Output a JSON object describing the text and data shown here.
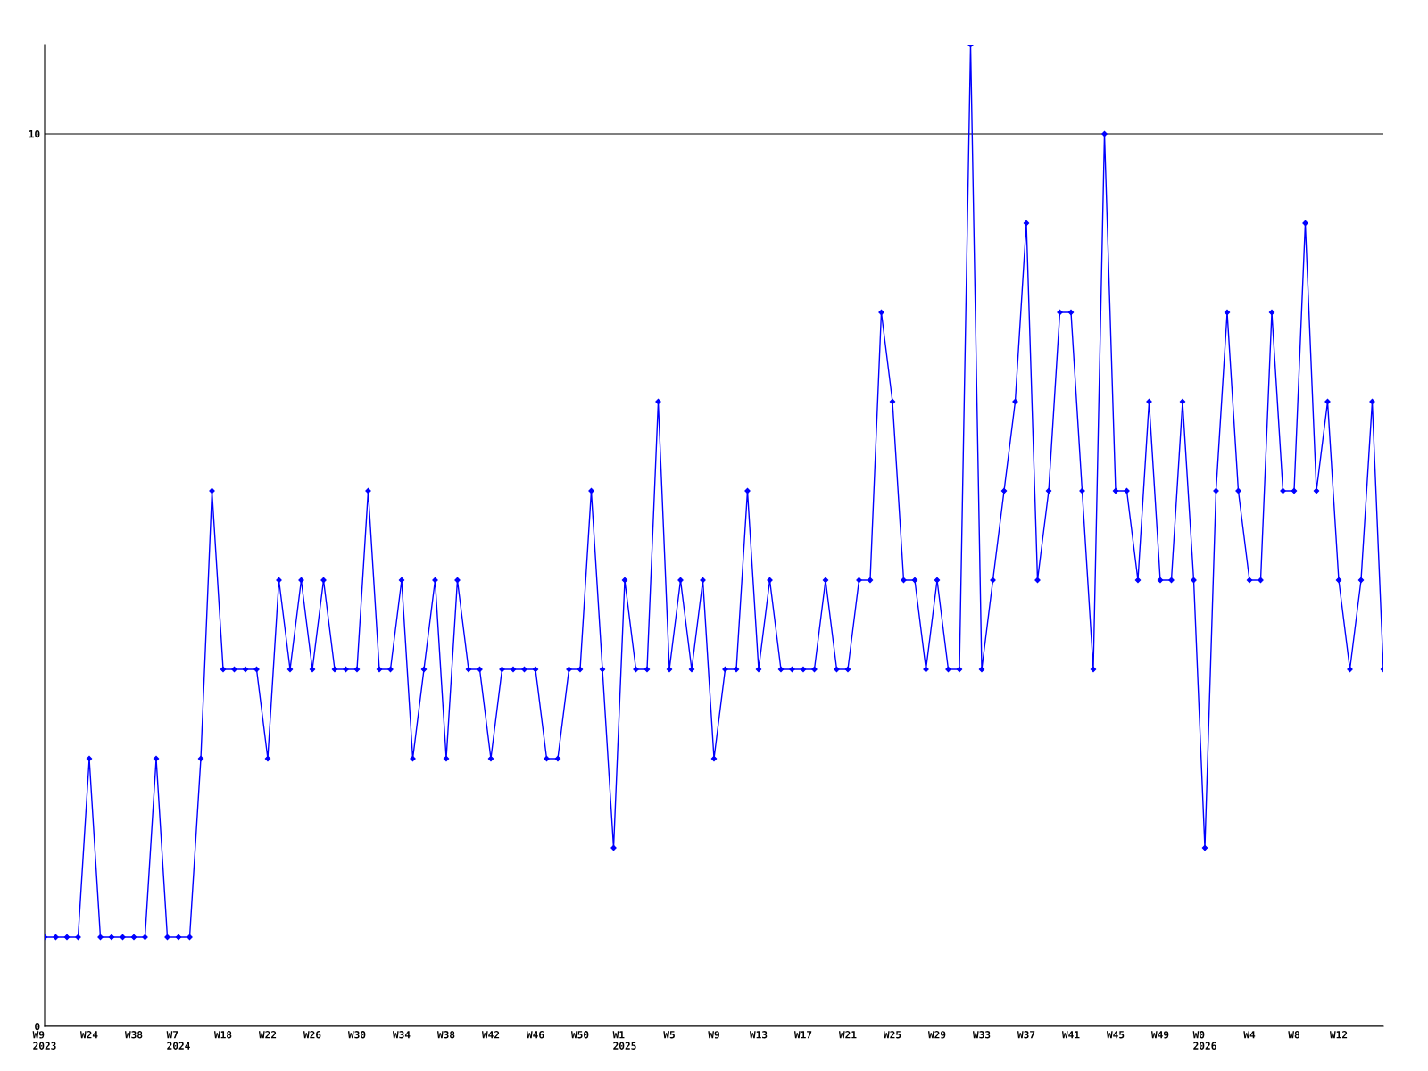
{
  "chart_data": {
    "type": "line",
    "categories": [
      "W9\n2023",
      null,
      null,
      null,
      "W24",
      null,
      null,
      null,
      "W38",
      null,
      null,
      null,
      "W7\n2024",
      null,
      null,
      null,
      "W18",
      null,
      null,
      null,
      "W22",
      null,
      null,
      null,
      "W26",
      null,
      null,
      null,
      "W30",
      null,
      null,
      null,
      "W34",
      null,
      null,
      null,
      "W38",
      null,
      null,
      null,
      "W42",
      null,
      null,
      null,
      "W46",
      null,
      null,
      null,
      "W50",
      null,
      null,
      null,
      "W1\n2025",
      null,
      null,
      null,
      "W5",
      null,
      null,
      null,
      "W9",
      null,
      null,
      null,
      "W13",
      null,
      null,
      null,
      "W17",
      null,
      null,
      null,
      "W21",
      null,
      null,
      null,
      "W25",
      null,
      null,
      null,
      "W29",
      null,
      null,
      null,
      "W33",
      null,
      null,
      null,
      "W37",
      null,
      null,
      null,
      "W41",
      null,
      null,
      null,
      "W45",
      null,
      null,
      null,
      "W49",
      null,
      null,
      null,
      "W0\n2026",
      null,
      null,
      null,
      "W4",
      null,
      null,
      null,
      "W8",
      null,
      null,
      null,
      "W12",
      null,
      null,
      null,
      null
    ],
    "series": [
      {
        "color": "#0000ff",
        "values": [
          1,
          1,
          1,
          1,
          3,
          1,
          1,
          1,
          1,
          1,
          3,
          1,
          1,
          1,
          3,
          6,
          4,
          4,
          4,
          4,
          3,
          5,
          4,
          5,
          4,
          5,
          4,
          4,
          4,
          6,
          4,
          4,
          5,
          3,
          4,
          5,
          3,
          5,
          4,
          4,
          3,
          4,
          4,
          4,
          4,
          3,
          3,
          4,
          4,
          6,
          4,
          2,
          5,
          4,
          4,
          7,
          4,
          5,
          4,
          5,
          3,
          4,
          4,
          6,
          4,
          5,
          4,
          4,
          4,
          4,
          5,
          4,
          4,
          5,
          5,
          8,
          7,
          5,
          5,
          4,
          5,
          4,
          4,
          11,
          4,
          5,
          6,
          7,
          9,
          5,
          6,
          8,
          8,
          6,
          4,
          10,
          6,
          6,
          5,
          7,
          5,
          5,
          7,
          5,
          2,
          6,
          8,
          6,
          5,
          5,
          8,
          6,
          6,
          9,
          6,
          7,
          5,
          4,
          5,
          7,
          4
        ]
      }
    ],
    "ylim": [
      0,
      11
    ],
    "yticks": [
      0,
      10
    ],
    "grid": "y",
    "marker": "diamond",
    "line_style": "solid",
    "legend": false
  }
}
